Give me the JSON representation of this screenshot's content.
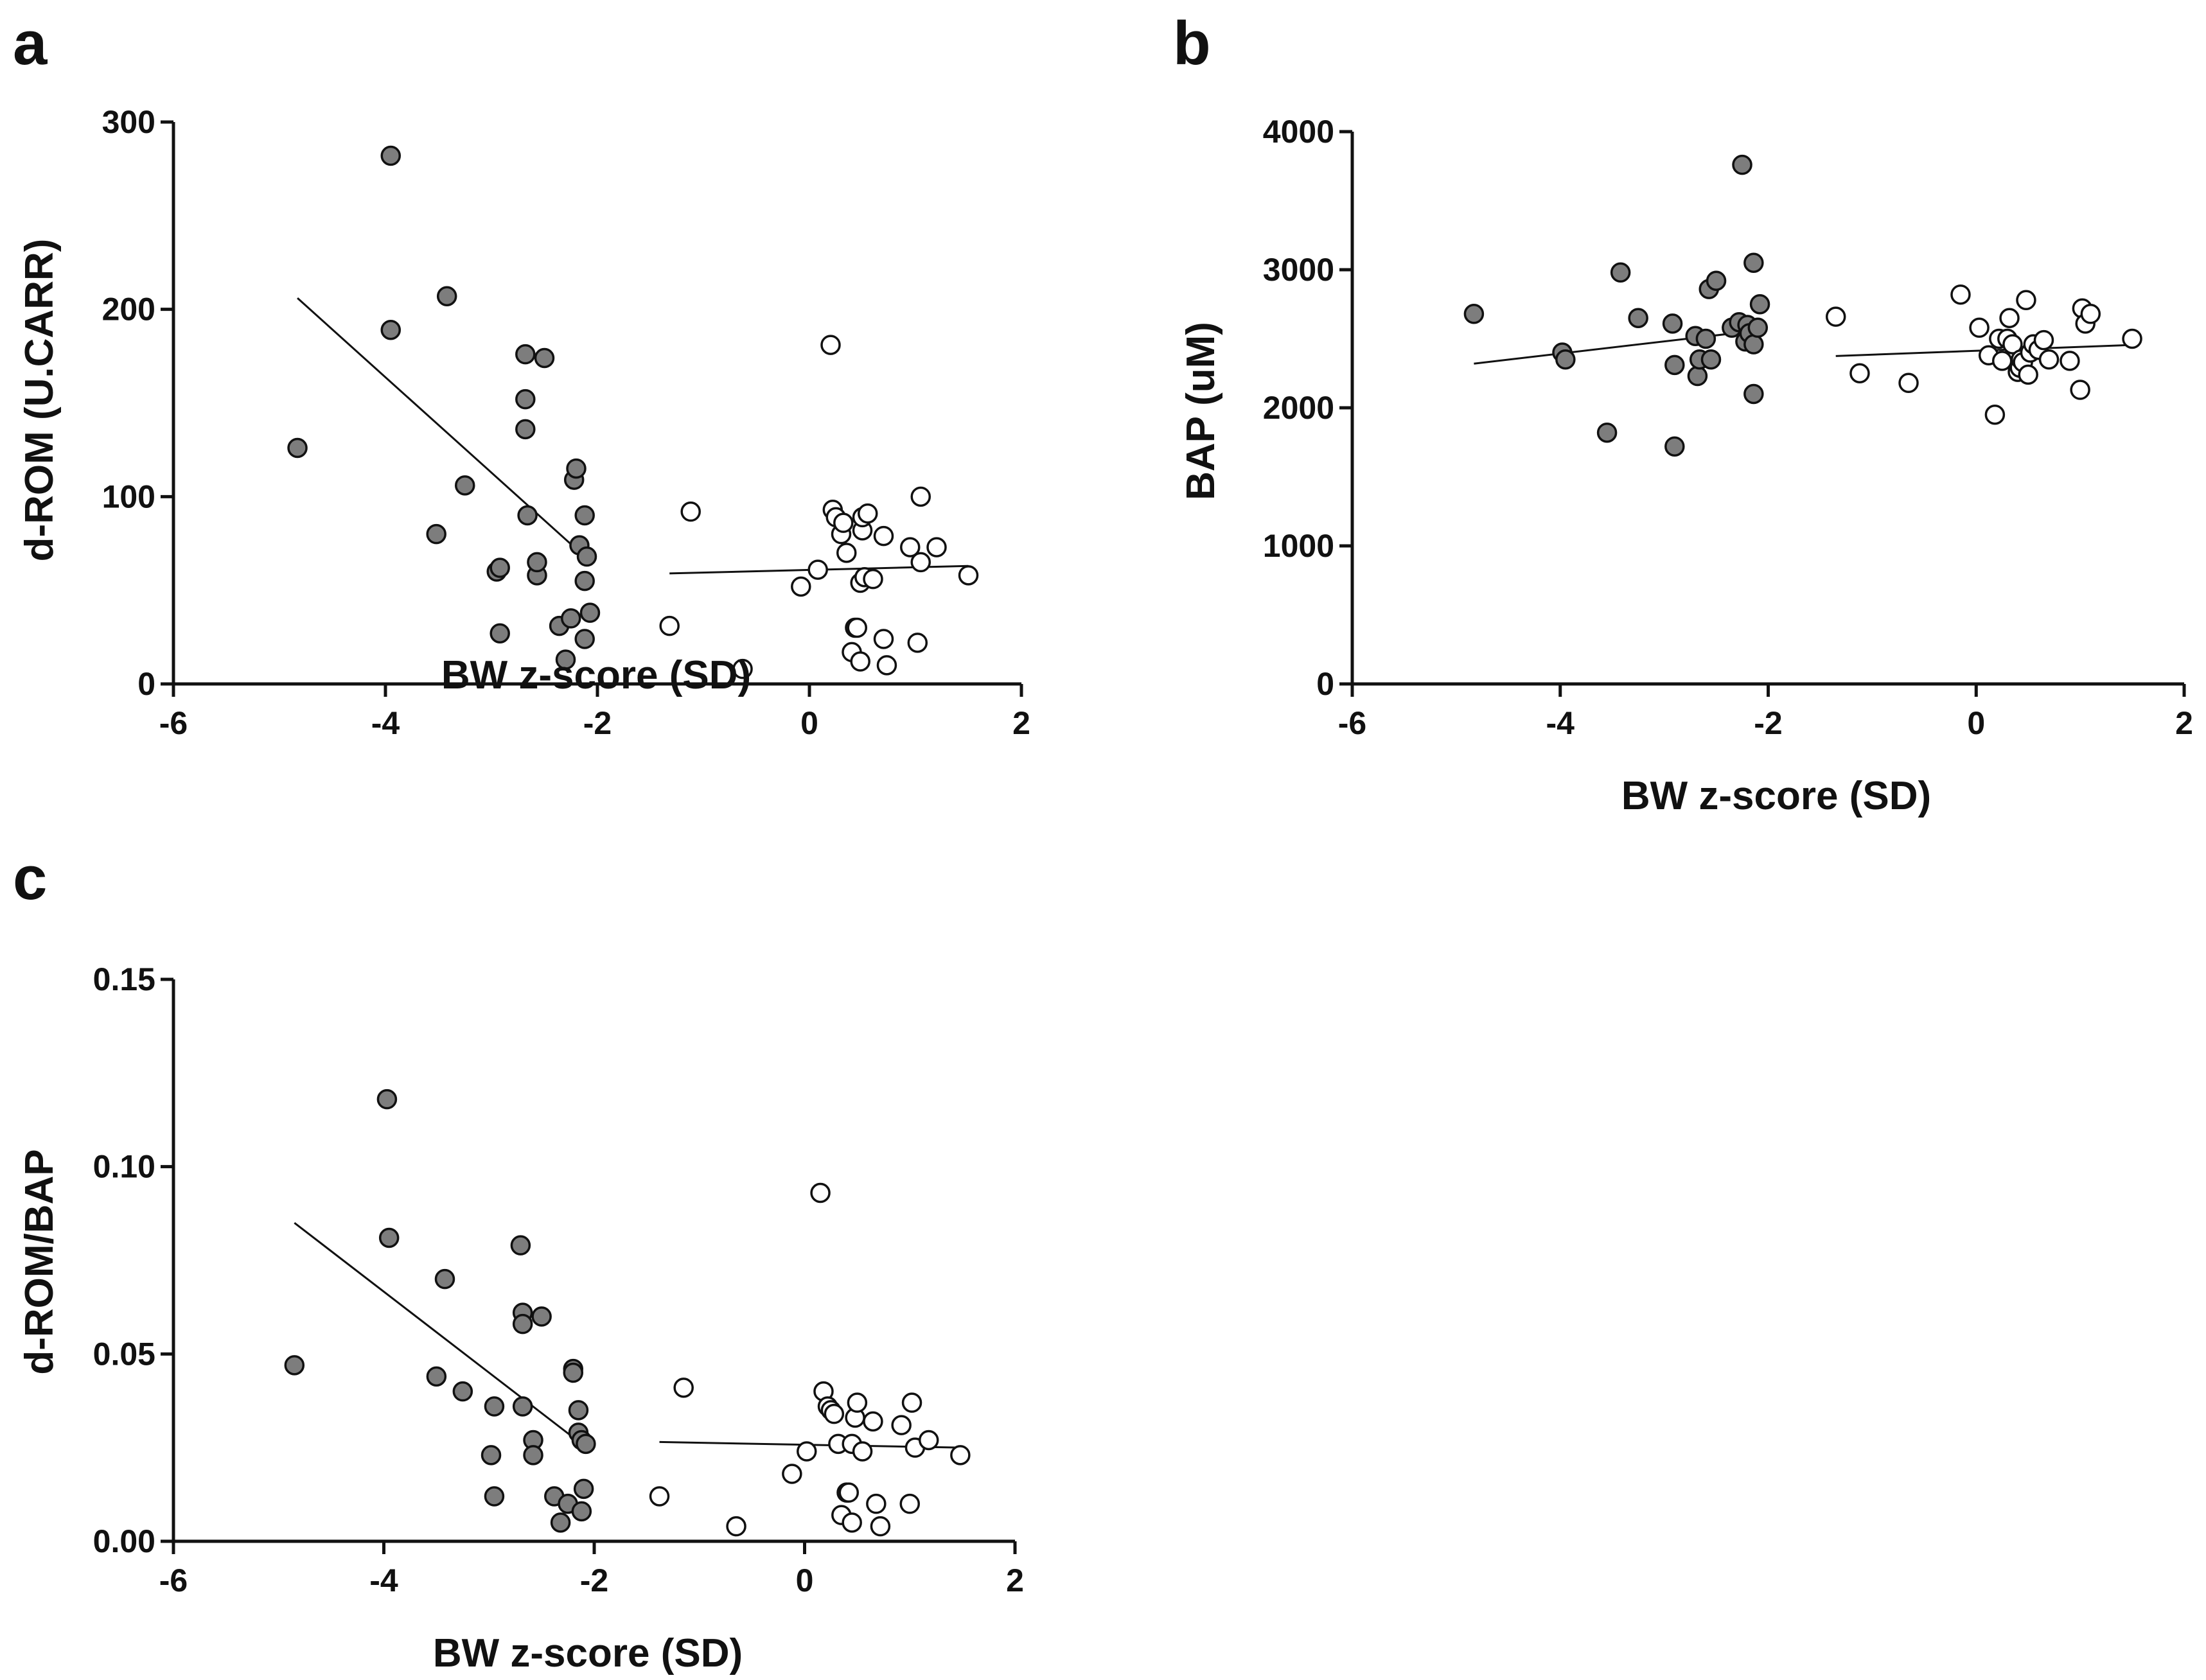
{
  "chart_data": [
    {
      "type": "scatter",
      "panel": "a",
      "xlabel": "BW z-score (SD)",
      "ylabel": "d-ROM (U.CARR)",
      "xlim": [
        -6,
        2
      ],
      "ylim": [
        0,
        300
      ],
      "xticks": [
        -6,
        -4,
        -2,
        0,
        2
      ],
      "yticks": [
        0,
        100,
        200,
        300
      ],
      "ytick_labels": [
        "0",
        "100",
        "200",
        "300"
      ],
      "series": [
        {
          "name": "filled",
          "style": "filled",
          "color": "#7d7d7d",
          "points": [
            [
              -4.83,
              126
            ],
            [
              -3.95,
              282
            ],
            [
              -3.95,
              189
            ],
            [
              -3.42,
              207
            ],
            [
              -3.52,
              80
            ],
            [
              -3.25,
              106
            ],
            [
              -2.95,
              60
            ],
            [
              -2.92,
              62
            ],
            [
              -2.92,
              27
            ],
            [
              -2.68,
              176
            ],
            [
              -2.68,
              152
            ],
            [
              -2.68,
              136
            ],
            [
              -2.66,
              90
            ],
            [
              -2.57,
              58
            ],
            [
              -2.57,
              65
            ],
            [
              -2.5,
              174
            ],
            [
              -2.36,
              31
            ],
            [
              -2.3,
              13
            ],
            [
              -2.25,
              35
            ],
            [
              -2.22,
              109
            ],
            [
              -2.2,
              115
            ],
            [
              -2.17,
              74
            ],
            [
              -2.12,
              90
            ],
            [
              -2.12,
              55
            ],
            [
              -2.12,
              24
            ],
            [
              -2.1,
              68
            ],
            [
              -2.07,
              38
            ]
          ]
        },
        {
          "name": "open",
          "style": "open",
          "color": "#ffffff",
          "points": [
            [
              -1.32,
              31
            ],
            [
              -1.12,
              92
            ],
            [
              -0.63,
              8
            ],
            [
              -0.08,
              52
            ],
            [
              0.08,
              61
            ],
            [
              0.2,
              181
            ],
            [
              0.22,
              93
            ],
            [
              0.25,
              89
            ],
            [
              0.3,
              80
            ],
            [
              0.32,
              86
            ],
            [
              0.35,
              70
            ],
            [
              0.4,
              17
            ],
            [
              0.43,
              30
            ],
            [
              0.45,
              30
            ],
            [
              0.48,
              12
            ],
            [
              0.48,
              54
            ],
            [
              0.5,
              82
            ],
            [
              0.5,
              89
            ],
            [
              0.52,
              57
            ],
            [
              0.55,
              91
            ],
            [
              0.6,
              56
            ],
            [
              0.7,
              79
            ],
            [
              0.7,
              24
            ],
            [
              0.73,
              10
            ],
            [
              0.95,
              73
            ],
            [
              1.02,
              22
            ],
            [
              1.05,
              100
            ],
            [
              1.05,
              65
            ],
            [
              1.2,
              73
            ],
            [
              1.5,
              58
            ]
          ]
        }
      ],
      "fit_lines": [
        {
          "series": "filled",
          "x": [
            -4.83,
            -2.12
          ],
          "y": [
            206,
            68
          ]
        },
        {
          "series": "open",
          "x": [
            -1.32,
            1.5
          ],
          "y": [
            59,
            63
          ]
        }
      ]
    },
    {
      "type": "scatter",
      "panel": "b",
      "xlabel": "BW z-score (SD)",
      "ylabel": "BAP (uM)",
      "xlim": [
        -6,
        2
      ],
      "ylim": [
        0,
        4000
      ],
      "xticks": [
        -6,
        -4,
        -2,
        0,
        2
      ],
      "yticks": [
        0,
        1000,
        2000,
        3000,
        4000
      ],
      "ytick_labels": [
        "0",
        "1000",
        "2000",
        "3000",
        "4000"
      ],
      "series": [
        {
          "name": "filled",
          "style": "filled",
          "color": "#7d7d7d",
          "points": [
            [
              -4.83,
              2680
            ],
            [
              -3.98,
              2400
            ],
            [
              -3.95,
              2350
            ],
            [
              -3.55,
              1820
            ],
            [
              -3.42,
              2980
            ],
            [
              -3.25,
              2650
            ],
            [
              -2.92,
              2610
            ],
            [
              -2.9,
              2310
            ],
            [
              -2.9,
              1720
            ],
            [
              -2.7,
              2520
            ],
            [
              -2.68,
              2230
            ],
            [
              -2.66,
              2350
            ],
            [
              -2.6,
              2500
            ],
            [
              -2.57,
              2860
            ],
            [
              -2.55,
              2350
            ],
            [
              -2.5,
              2920
            ],
            [
              -2.35,
              2580
            ],
            [
              -2.28,
              2620
            ],
            [
              -2.25,
              3760
            ],
            [
              -2.22,
              2480
            ],
            [
              -2.2,
              2600
            ],
            [
              -2.18,
              2540
            ],
            [
              -2.14,
              2460
            ],
            [
              -2.14,
              3050
            ],
            [
              -2.14,
              2100
            ],
            [
              -2.1,
              2580
            ],
            [
              -2.08,
              2750
            ]
          ]
        },
        {
          "name": "open",
          "style": "open",
          "color": "#ffffff",
          "points": [
            [
              -1.35,
              2660
            ],
            [
              -1.12,
              2250
            ],
            [
              -0.65,
              2180
            ],
            [
              -0.15,
              2820
            ],
            [
              0.03,
              2580
            ],
            [
              0.12,
              2380
            ],
            [
              0.18,
              1950
            ],
            [
              0.22,
              2500
            ],
            [
              0.25,
              2340
            ],
            [
              0.3,
              2500
            ],
            [
              0.32,
              2650
            ],
            [
              0.35,
              2460
            ],
            [
              0.4,
              2260
            ],
            [
              0.42,
              2290
            ],
            [
              0.43,
              2350
            ],
            [
              0.45,
              2330
            ],
            [
              0.48,
              2780
            ],
            [
              0.5,
              2240
            ],
            [
              0.52,
              2400
            ],
            [
              0.55,
              2460
            ],
            [
              0.6,
              2420
            ],
            [
              0.65,
              2490
            ],
            [
              0.7,
              2350
            ],
            [
              0.9,
              2340
            ],
            [
              1.0,
              2130
            ],
            [
              1.02,
              2720
            ],
            [
              1.05,
              2610
            ],
            [
              1.1,
              2680
            ],
            [
              1.5,
              2500
            ]
          ]
        }
      ],
      "fit_lines": [
        {
          "series": "filled",
          "x": [
            -4.83,
            -2.1
          ],
          "y": [
            2320,
            2560
          ]
        },
        {
          "series": "open",
          "x": [
            -1.35,
            1.5
          ],
          "y": [
            2375,
            2455
          ]
        }
      ]
    },
    {
      "type": "scatter",
      "panel": "c",
      "xlabel": "BW z-score (SD)",
      "ylabel": "d-ROM/BAP",
      "xlim": [
        -6,
        2
      ],
      "ylim": [
        0,
        0.15
      ],
      "xticks": [
        -6,
        -4,
        -2,
        0,
        2
      ],
      "yticks": [
        0,
        0.05,
        0.1,
        0.15
      ],
      "ytick_labels": [
        "0.00",
        "0.05",
        "0.10",
        "0.15"
      ],
      "series": [
        {
          "name": "filled",
          "style": "filled",
          "color": "#7d7d7d",
          "points": [
            [
              -4.85,
              0.047
            ],
            [
              -3.97,
              0.118
            ],
            [
              -3.95,
              0.081
            ],
            [
              -3.42,
              0.07
            ],
            [
              -3.5,
              0.044
            ],
            [
              -3.25,
              0.04
            ],
            [
              -2.95,
              0.036
            ],
            [
              -2.98,
              0.023
            ],
            [
              -2.95,
              0.012
            ],
            [
              -2.7,
              0.079
            ],
            [
              -2.68,
              0.061
            ],
            [
              -2.68,
              0.058
            ],
            [
              -2.68,
              0.036
            ],
            [
              -2.58,
              0.027
            ],
            [
              -2.58,
              0.023
            ],
            [
              -2.5,
              0.06
            ],
            [
              -2.38,
              0.012
            ],
            [
              -2.32,
              0.005
            ],
            [
              -2.25,
              0.01
            ],
            [
              -2.2,
              0.046
            ],
            [
              -2.2,
              0.045
            ],
            [
              -2.15,
              0.035
            ],
            [
              -2.15,
              0.029
            ],
            [
              -2.12,
              0.027
            ],
            [
              -2.12,
              0.008
            ],
            [
              -2.1,
              0.014
            ],
            [
              -2.08,
              0.026
            ]
          ]
        },
        {
          "name": "open",
          "style": "open",
          "color": "#ffffff",
          "points": [
            [
              -1.38,
              0.012
            ],
            [
              -1.15,
              0.041
            ],
            [
              -0.65,
              0.004
            ],
            [
              -0.12,
              0.018
            ],
            [
              0.02,
              0.024
            ],
            [
              0.15,
              0.093
            ],
            [
              0.18,
              0.04
            ],
            [
              0.22,
              0.036
            ],
            [
              0.25,
              0.035
            ],
            [
              0.28,
              0.034
            ],
            [
              0.32,
              0.026
            ],
            [
              0.35,
              0.007
            ],
            [
              0.4,
              0.013
            ],
            [
              0.42,
              0.013
            ],
            [
              0.45,
              0.005
            ],
            [
              0.45,
              0.026
            ],
            [
              0.48,
              0.033
            ],
            [
              0.5,
              0.037
            ],
            [
              0.55,
              0.024
            ],
            [
              0.65,
              0.032
            ],
            [
              0.68,
              0.01
            ],
            [
              0.72,
              0.004
            ],
            [
              0.92,
              0.031
            ],
            [
              1.0,
              0.01
            ],
            [
              1.02,
              0.037
            ],
            [
              1.05,
              0.025
            ],
            [
              1.18,
              0.027
            ],
            [
              1.48,
              0.023
            ]
          ]
        }
      ],
      "fit_lines": [
        {
          "series": "filled",
          "x": [
            -4.85,
            -2.12
          ],
          "y": [
            0.085,
            0.026
          ]
        },
        {
          "series": "open",
          "x": [
            -1.38,
            1.48
          ],
          "y": [
            0.0265,
            0.025
          ]
        }
      ]
    }
  ]
}
